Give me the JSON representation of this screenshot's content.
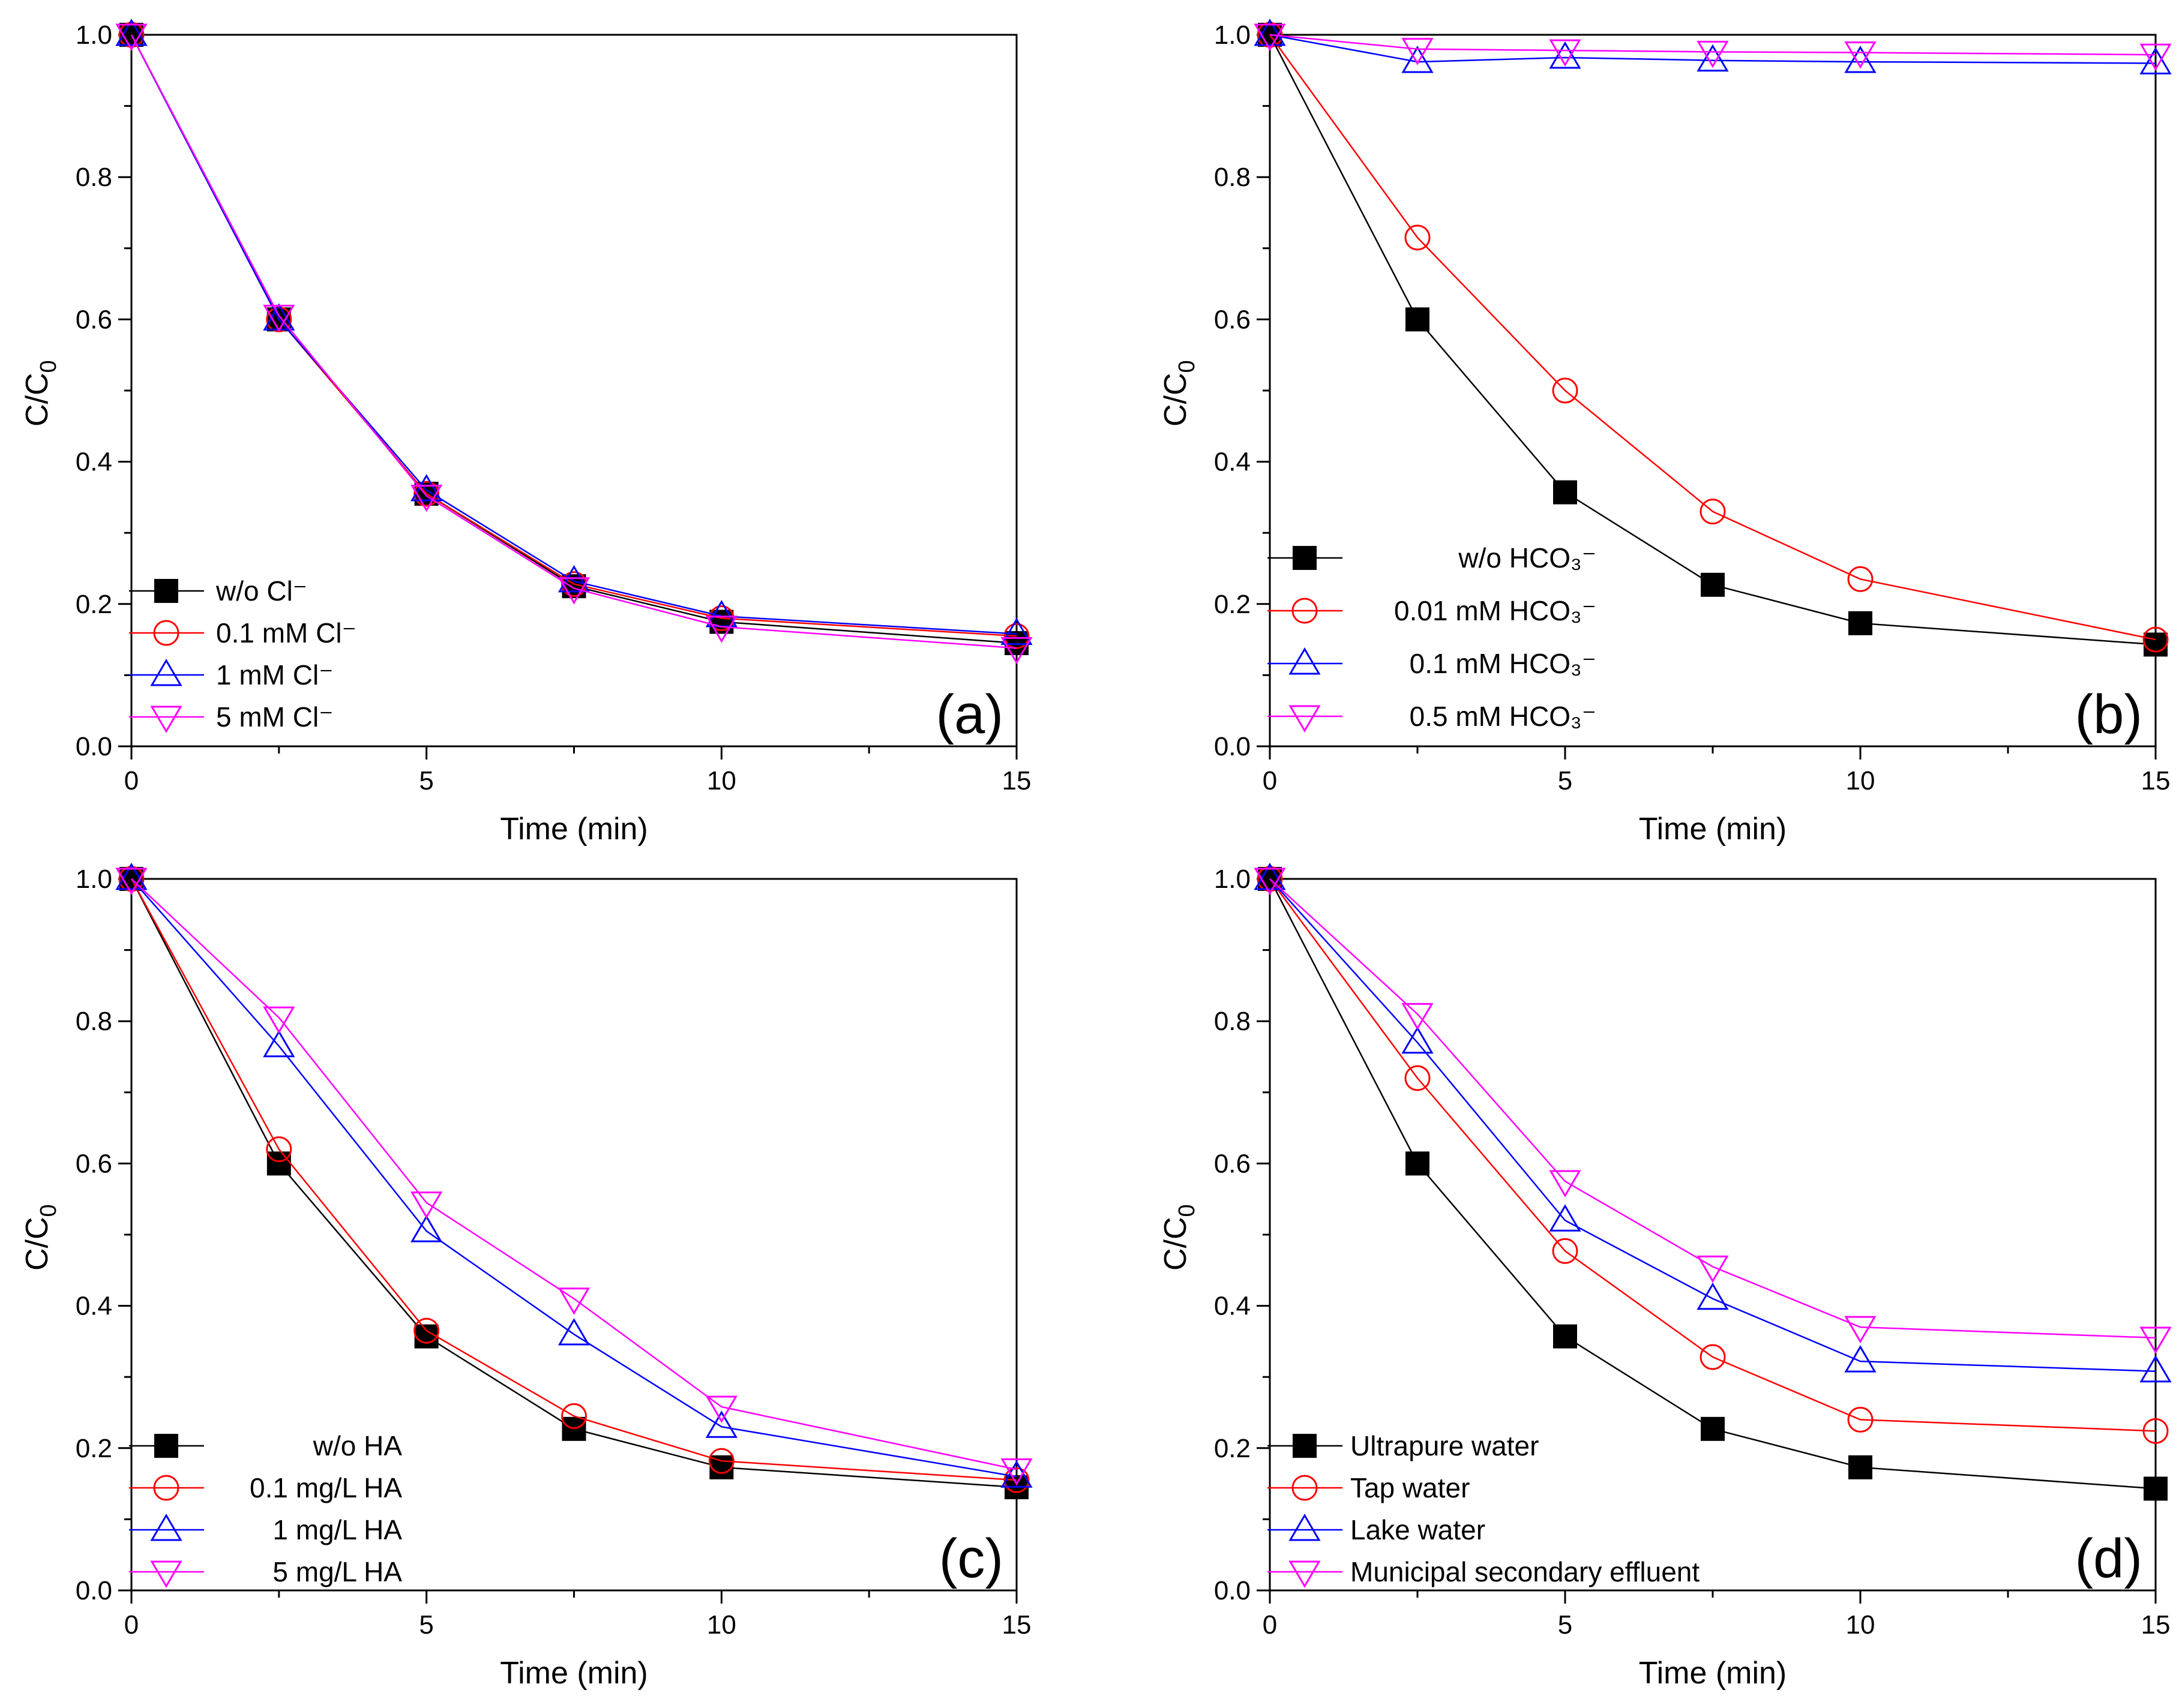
{
  "chart_data": [
    {
      "type": "line",
      "panel_label": "(a)",
      "xlabel": "Time (min)",
      "ylabel_main": "C/C",
      "ylabel_sub": "0",
      "xlim": [
        0,
        15
      ],
      "ylim": [
        0,
        1.0
      ],
      "xticks": [
        "0",
        "5",
        "10",
        "15"
      ],
      "yticks": [
        "0.0",
        "0.2",
        "0.4",
        "0.6",
        "0.8",
        "1.0"
      ],
      "legend_position": "bottom-left",
      "x": [
        0,
        2.5,
        5,
        7.5,
        10,
        15
      ],
      "series": [
        {
          "name": "w/o Cl⁻",
          "marker": "square",
          "color": "#000000",
          "values": [
            1.0,
            0.6,
            0.355,
            0.225,
            0.175,
            0.145
          ]
        },
        {
          "name": "0.1 mM Cl⁻",
          "marker": "circle",
          "color": "#ff0000",
          "values": [
            1.0,
            0.6,
            0.355,
            0.228,
            0.18,
            0.155
          ]
        },
        {
          "name": "1    mM Cl⁻",
          "marker": "triangle-up",
          "color": "#0000ff",
          "values": [
            1.0,
            0.6,
            0.36,
            0.232,
            0.183,
            0.158
          ]
        },
        {
          "name": "5    mM Cl⁻",
          "marker": "triangle-down",
          "color": "#ff00ff",
          "values": [
            1.0,
            0.605,
            0.352,
            0.222,
            0.168,
            0.138
          ]
        }
      ]
    },
    {
      "type": "line",
      "panel_label": "(b)",
      "xlabel": "Time (min)",
      "ylabel_main": "C/C",
      "ylabel_sub": "0",
      "xlim": [
        0,
        15
      ],
      "ylim": [
        0,
        1.0
      ],
      "xticks": [
        "0",
        "5",
        "10",
        "15"
      ],
      "yticks": [
        "0.0",
        "0.2",
        "0.4",
        "0.6",
        "0.8",
        "1.0"
      ],
      "legend_position": "bottom-left",
      "x": [
        0,
        2.5,
        5,
        7.5,
        10,
        15
      ],
      "series": [
        {
          "name": "w/o HCO₃⁻",
          "marker": "square",
          "color": "#000000",
          "values": [
            1.0,
            0.6,
            0.357,
            0.227,
            0.173,
            0.143
          ]
        },
        {
          "name": "0.01 mM HCO₃⁻",
          "marker": "circle",
          "color": "#ff0000",
          "values": [
            1.0,
            0.715,
            0.5,
            0.33,
            0.235,
            0.15
          ]
        },
        {
          "name": "0.1 mM HCO₃⁻",
          "marker": "triangle-up",
          "color": "#0000ff",
          "values": [
            1.0,
            0.962,
            0.968,
            0.964,
            0.962,
            0.96
          ]
        },
        {
          "name": "0.5 mM HCO₃⁻",
          "marker": "triangle-down",
          "color": "#ff00ff",
          "values": [
            1.0,
            0.98,
            0.978,
            0.976,
            0.975,
            0.972
          ]
        }
      ]
    },
    {
      "type": "line",
      "panel_label": "(c)",
      "xlabel": "Time (min)",
      "ylabel_main": "C/C",
      "ylabel_sub": "0",
      "xlim": [
        0,
        15
      ],
      "ylim": [
        0,
        1.0
      ],
      "xticks": [
        "0",
        "5",
        "10",
        "15"
      ],
      "yticks": [
        "0.0",
        "0.2",
        "0.4",
        "0.6",
        "0.8",
        "1.0"
      ],
      "legend_position": "bottom-left",
      "x": [
        0,
        2.5,
        5,
        7.5,
        10,
        15
      ],
      "series": [
        {
          "name": "w/o HA",
          "marker": "square",
          "color": "#000000",
          "values": [
            1.0,
            0.6,
            0.357,
            0.227,
            0.173,
            0.145
          ]
        },
        {
          "name": "0.1 mg/L HA",
          "marker": "circle",
          "color": "#ff0000",
          "values": [
            1.0,
            0.62,
            0.365,
            0.245,
            0.182,
            0.155
          ]
        },
        {
          "name": "1 mg/L HA",
          "marker": "triangle-up",
          "color": "#0000ff",
          "values": [
            1.0,
            0.765,
            0.505,
            0.36,
            0.23,
            0.16
          ]
        },
        {
          "name": "5 mg/L HA",
          "marker": "triangle-down",
          "color": "#ff00ff",
          "values": [
            1.0,
            0.805,
            0.545,
            0.41,
            0.258,
            0.17
          ]
        }
      ]
    },
    {
      "type": "line",
      "panel_label": "(d)",
      "xlabel": "Time (min)",
      "ylabel_main": "C/C",
      "ylabel_sub": "0",
      "xlim": [
        0,
        15
      ],
      "ylim": [
        0,
        1.0
      ],
      "xticks": [
        "0",
        "5",
        "10",
        "15"
      ],
      "yticks": [
        "0.0",
        "0.2",
        "0.4",
        "0.6",
        "0.8",
        "1.0"
      ],
      "legend_position": "bottom-left",
      "x": [
        0,
        2.5,
        5,
        7.5,
        10,
        15
      ],
      "series": [
        {
          "name": "Ultrapure water",
          "marker": "square",
          "color": "#000000",
          "values": [
            1.0,
            0.6,
            0.357,
            0.227,
            0.173,
            0.143
          ]
        },
        {
          "name": "Tap water",
          "marker": "circle",
          "color": "#ff0000",
          "values": [
            1.0,
            0.72,
            0.477,
            0.328,
            0.24,
            0.224
          ]
        },
        {
          "name": "Lake water",
          "marker": "triangle-up",
          "color": "#0000ff",
          "values": [
            1.0,
            0.77,
            0.52,
            0.41,
            0.322,
            0.308
          ]
        },
        {
          "name": "Municipal secondary effluent",
          "marker": "triangle-down",
          "color": "#ff00ff",
          "values": [
            1.0,
            0.81,
            0.575,
            0.455,
            0.37,
            0.355
          ]
        }
      ]
    }
  ]
}
